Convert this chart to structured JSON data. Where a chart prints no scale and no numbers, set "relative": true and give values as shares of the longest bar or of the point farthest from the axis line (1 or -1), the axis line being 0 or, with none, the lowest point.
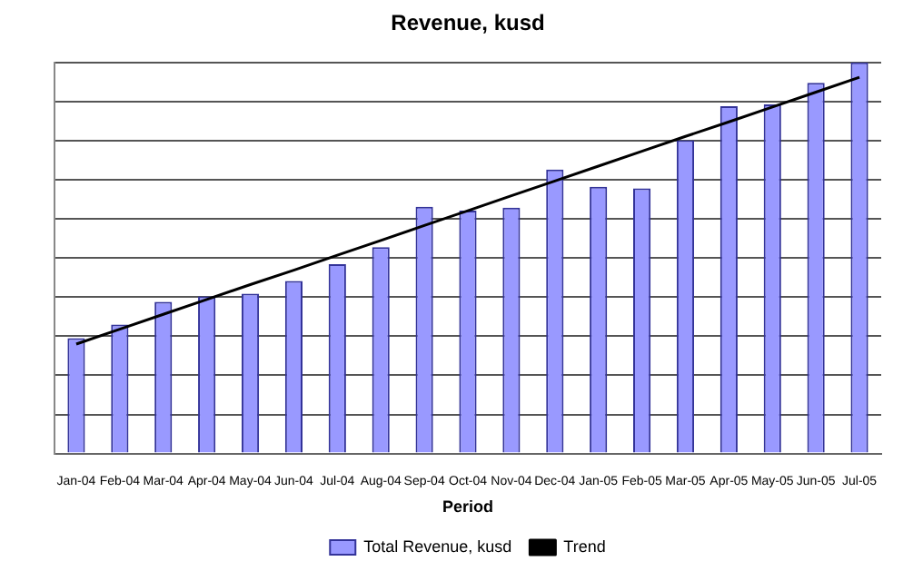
{
  "chart_data": {
    "type": "bar",
    "title": "Revenue, kusd",
    "xlabel": "Period",
    "relative": true,
    "grid": "y",
    "legend": "bottom",
    "categories": [
      "Jan-04",
      "Feb-04",
      "Mar-04",
      "Apr-04",
      "May-04",
      "Jun-04",
      "Jul-04",
      "Aug-04",
      "Sep-04",
      "Oct-04",
      "Nov-04",
      "Dec-04",
      "Jan-05",
      "Feb-05",
      "Mar-05",
      "Apr-05",
      "May-05",
      "Jun-05",
      "Jul-05"
    ],
    "series": [
      {
        "name": "Total Revenue, kusd",
        "color": "#9999ff",
        "values": [
          0.295,
          0.33,
          0.388,
          0.402,
          0.409,
          0.441,
          0.484,
          0.528,
          0.631,
          0.621,
          0.629,
          0.726,
          0.682,
          0.678,
          0.801,
          0.888,
          0.893,
          0.948,
          1
        ]
      },
      {
        "name": "Trend",
        "type": "line",
        "color": "#000000",
        "values": [
          0.28,
          0.318,
          0.356,
          0.394,
          0.432,
          0.469,
          0.507,
          0.545,
          0.583,
          0.621,
          0.659,
          0.697,
          0.735,
          0.773,
          0.811,
          0.848,
          0.886,
          0.924,
          0.962
        ]
      }
    ]
  }
}
